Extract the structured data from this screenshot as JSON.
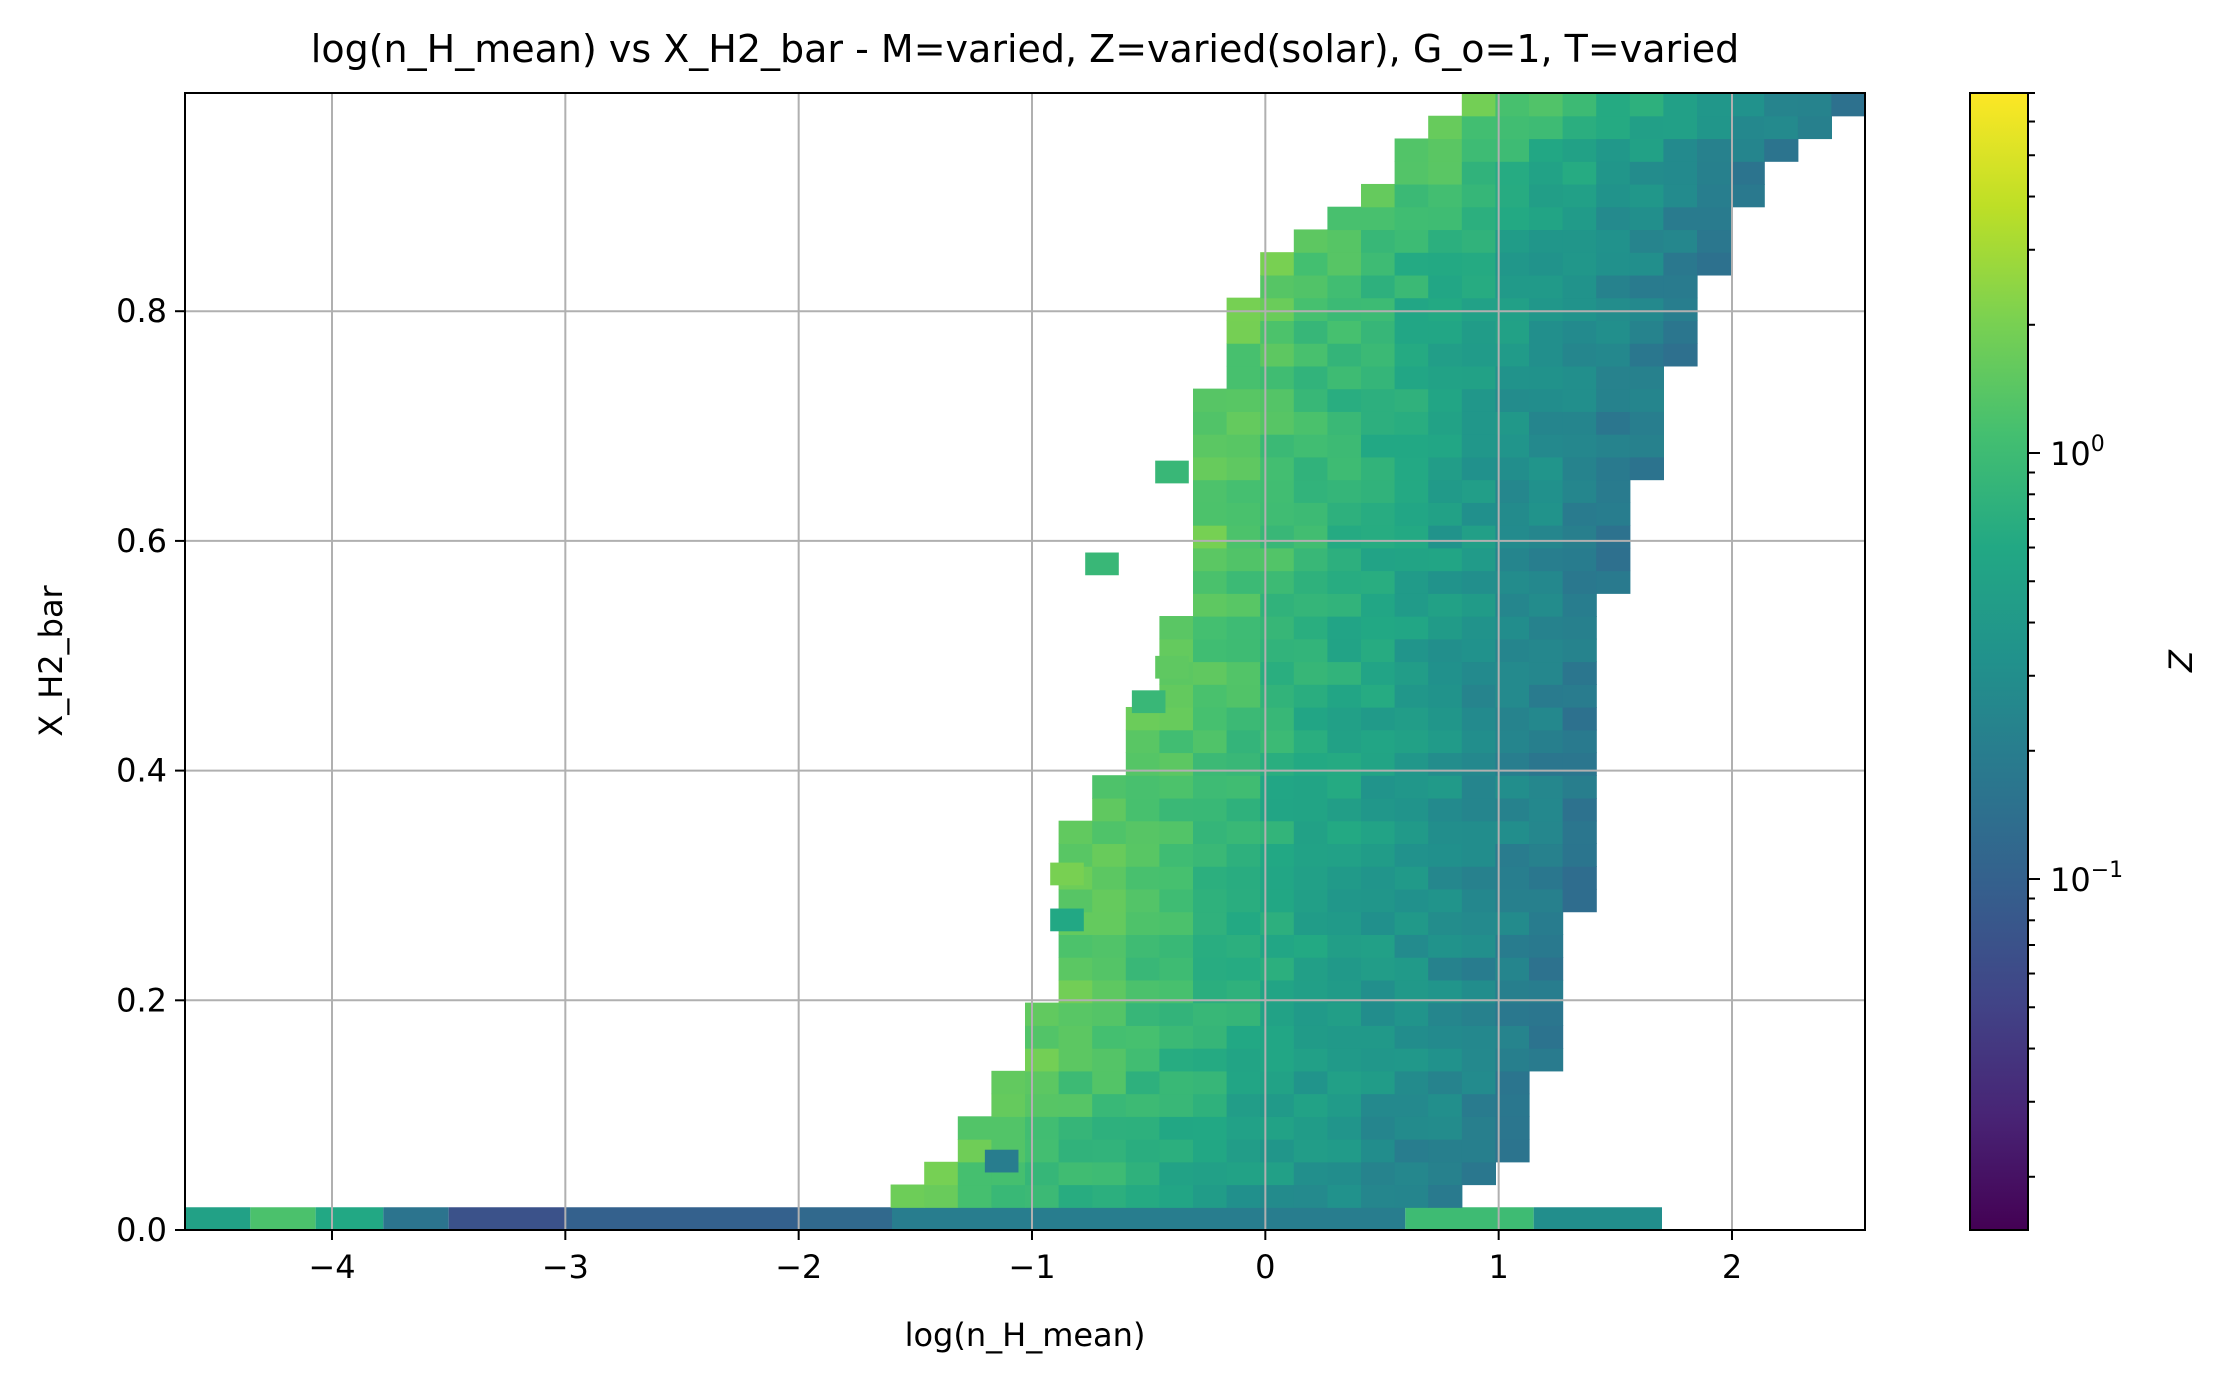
{
  "chart_data": {
    "type": "heatmap",
    "title": "log(n_H_mean) vs X_H2_bar - M=varied, Z=varied(solar), G_o=1, T=varied",
    "xlabel": "log(n_H_mean)",
    "ylabel": "X_H2_bar",
    "colorbar_label": "Z",
    "xlim": [
      -4.63,
      2.57
    ],
    "ylim": [
      0.0,
      0.99
    ],
    "x_ticks": [
      -4,
      -3,
      -2,
      -1,
      0,
      1,
      2
    ],
    "x_tick_labels": [
      "−4",
      "−3",
      "−2",
      "−1",
      "0",
      "1",
      "2"
    ],
    "y_ticks": [
      0.0,
      0.2,
      0.4,
      0.6,
      0.8
    ],
    "y_tick_labels": [
      "0.0",
      "0.2",
      "0.4",
      "0.6",
      "0.8"
    ],
    "colorbar_scale": "log",
    "colorbar_range": [
      0.015,
      7.0
    ],
    "colorbar_ticks": [
      {
        "value": 1.0,
        "base": "10",
        "exp": "0"
      },
      {
        "value": 0.1,
        "base": "10",
        "exp": "−1"
      }
    ],
    "colormap": "viridis",
    "grid": true,
    "bins": {
      "x_step": 0.144,
      "y_step": 0.0198
    },
    "zero_row": [
      {
        "x0": -4.63,
        "x1": -4.35,
        "z": 0.5
      },
      {
        "x0": -4.35,
        "x1": -4.07,
        "z": 1.2
      },
      {
        "x0": -4.07,
        "x1": -3.78,
        "z": 0.6
      },
      {
        "x0": -3.78,
        "x1": -3.5,
        "z": 0.16
      },
      {
        "x0": -3.5,
        "x1": -3.0,
        "z": 0.07
      },
      {
        "x0": -3.0,
        "x1": -2.0,
        "z": 0.1
      },
      {
        "x0": -2.0,
        "x1": -1.6,
        "z": 0.12
      },
      {
        "x0": -1.6,
        "x1": 0.6,
        "z": 0.2
      },
      {
        "x0": 0.6,
        "x1": 1.15,
        "z": 1.0
      },
      {
        "x0": 1.15,
        "x1": 1.7,
        "z": 0.3
      }
    ],
    "band_rows": [
      {
        "y": 0.03,
        "x0": -1.6,
        "x1": 0.85
      },
      {
        "y": 0.08,
        "x0": -1.3,
        "x1": 1.12
      },
      {
        "y": 0.16,
        "x0": -1.02,
        "x1": 1.25
      },
      {
        "y": 0.25,
        "x0": -0.88,
        "x1": 1.32
      },
      {
        "y": 0.33,
        "x0": -0.88,
        "x1": 1.4
      },
      {
        "y": 0.43,
        "x0": -0.58,
        "x1": 1.42
      },
      {
        "y": 0.5,
        "x0": -0.44,
        "x1": 1.42
      },
      {
        "y": 0.6,
        "x0": -0.3,
        "x1": 1.56
      },
      {
        "y": 0.7,
        "x0": -0.3,
        "x1": 1.7
      },
      {
        "y": 0.79,
        "x0": -0.15,
        "x1": 1.83
      },
      {
        "y": 0.87,
        "x0": 0.12,
        "x1": 2.0
      },
      {
        "y": 0.93,
        "x0": 0.55,
        "x1": 2.2
      },
      {
        "y": 0.98,
        "x0": 0.85,
        "x1": 2.57
      }
    ],
    "outlier_cells": [
      {
        "x": -1.13,
        "y": 0.06,
        "z": 0.2
      },
      {
        "x": -0.7,
        "y": 0.58,
        "z": 0.9
      },
      {
        "x": -0.4,
        "y": 0.66,
        "z": 0.9
      },
      {
        "x": -0.4,
        "y": 0.49,
        "z": 1.5
      },
      {
        "x": -0.5,
        "y": 0.46,
        "z": 0.9
      },
      {
        "x": -0.85,
        "y": 0.31,
        "z": 2.0
      },
      {
        "x": -0.85,
        "y": 0.27,
        "z": 0.6
      }
    ]
  }
}
